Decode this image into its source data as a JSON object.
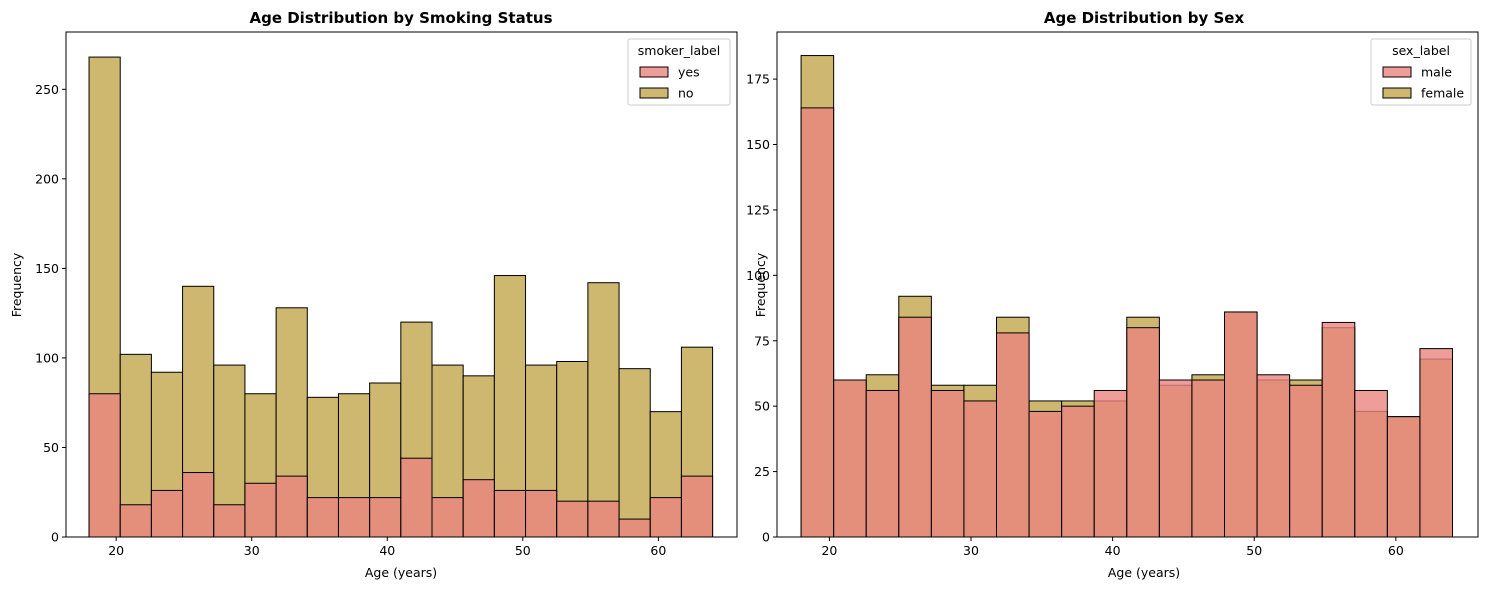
{
  "chart_data": [
    {
      "type": "bar",
      "title": "Age Distribution by Smoking Status",
      "xlabel": "Age (years)",
      "ylabel": "Frequency",
      "xlim": [
        16.3,
        65.8
      ],
      "ylim": [
        0,
        282
      ],
      "xticks": [
        20,
        30,
        40,
        50,
        60
      ],
      "yticks": [
        0,
        50,
        100,
        150,
        200,
        250
      ],
      "bin_start": 18,
      "bin_width": 2.3,
      "grid": false,
      "legend": {
        "title": "smoker_label",
        "placement": "top-right"
      },
      "series": [
        {
          "name": "yes",
          "color": "#ea8480",
          "values": [
            80,
            18,
            26,
            36,
            18,
            30,
            34,
            22,
            22,
            22,
            44,
            22,
            32,
            26,
            26,
            20,
            20,
            10,
            22,
            34
          ]
        },
        {
          "name": "no",
          "color": "#ceb76e",
          "values": [
            268,
            102,
            92,
            140,
            96,
            80,
            128,
            78,
            80,
            86,
            120,
            96,
            90,
            146,
            96,
            98,
            142,
            94,
            70,
            106
          ]
        }
      ]
    },
    {
      "type": "bar",
      "title": "Age Distribution by Sex",
      "xlabel": "Age (years)",
      "ylabel": "Frequency",
      "xlim": [
        16.3,
        65.8
      ],
      "ylim": [
        0,
        193
      ],
      "xticks": [
        20,
        30,
        40,
        50,
        60
      ],
      "yticks": [
        0,
        25,
        50,
        75,
        100,
        125,
        150,
        175
      ],
      "bin_start": 18,
      "bin_width": 2.3,
      "grid": false,
      "legend": {
        "title": "sex_label",
        "placement": "top-right"
      },
      "series": [
        {
          "name": "male",
          "color": "#ea8480",
          "values": [
            164,
            60,
            56,
            84,
            56,
            52,
            78,
            48,
            50,
            56,
            80,
            60,
            60,
            86,
            62,
            58,
            82,
            56,
            46,
            72
          ]
        },
        {
          "name": "female",
          "color": "#ceb76e",
          "values": [
            184,
            60,
            62,
            92,
            58,
            58,
            84,
            52,
            52,
            52,
            84,
            58,
            62,
            86,
            60,
            60,
            80,
            48,
            46,
            68
          ]
        }
      ]
    }
  ]
}
